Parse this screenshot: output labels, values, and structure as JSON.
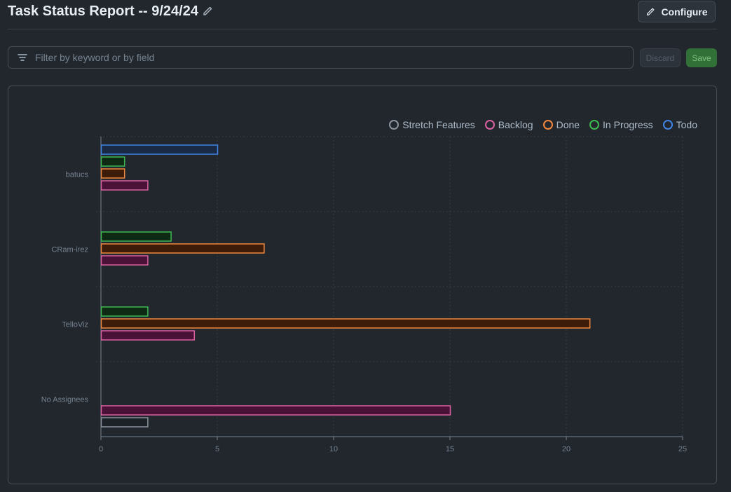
{
  "header": {
    "title": "Task Status Report -- 9/24/24",
    "configure_label": "Configure"
  },
  "filter": {
    "placeholder": "Filter by keyword or by field",
    "discard_label": "Discard",
    "save_label": "Save"
  },
  "chart_data": {
    "type": "bar",
    "orientation": "horizontal",
    "categories": [
      "batucs",
      "CRam-irez",
      "TelloViz",
      "No Assignees"
    ],
    "series": [
      {
        "name": "Stretch Features",
        "color": "#8b949e",
        "fill": "#1c2128",
        "values": [
          0,
          0,
          0,
          2
        ]
      },
      {
        "name": "Backlog",
        "color": "#db61a2",
        "fill": "#4a1236",
        "values": [
          2,
          2,
          4,
          15
        ]
      },
      {
        "name": "Done",
        "color": "#f0883e",
        "fill": "#3d1d0a",
        "values": [
          1,
          7,
          21,
          0
        ]
      },
      {
        "name": "In Progress",
        "color": "#3fb950",
        "fill": "#0f2a14",
        "values": [
          1,
          3,
          2,
          0
        ]
      },
      {
        "name": "Todo",
        "color": "#4184e4",
        "fill": "#1a2a45",
        "values": [
          5,
          0,
          0,
          0
        ]
      }
    ],
    "xlim": [
      0,
      25
    ],
    "xticks": [
      0,
      5,
      10,
      15,
      20,
      25
    ],
    "grid": true,
    "legend_position": "top-right"
  }
}
